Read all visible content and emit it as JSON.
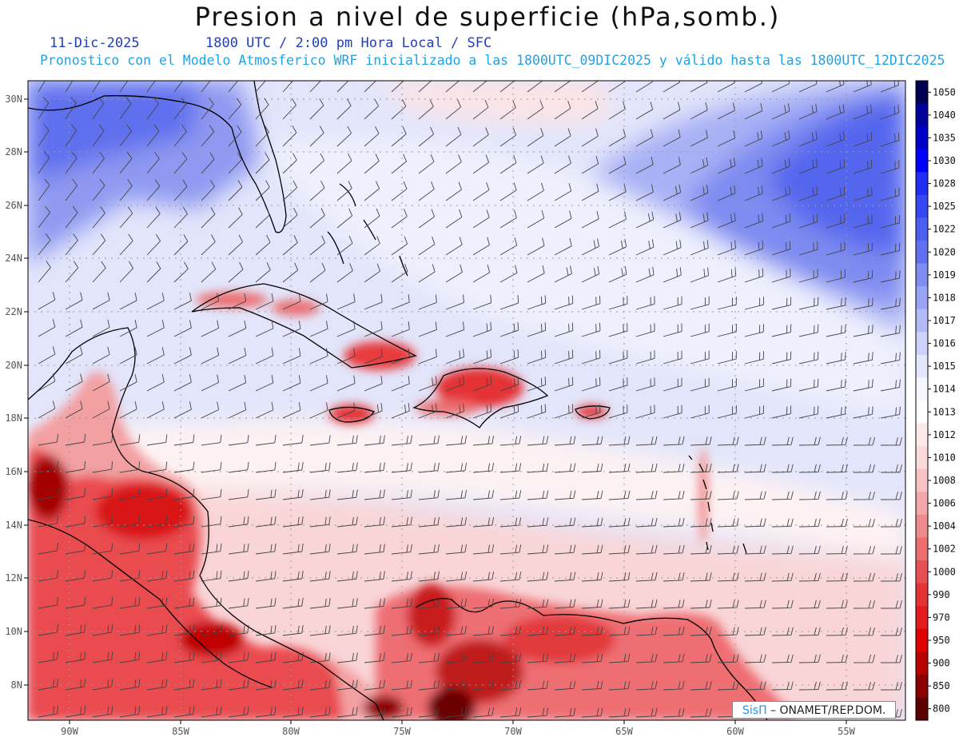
{
  "header": {
    "title": "Presion a nivel de superficie (hPa,somb.)",
    "date": "11-Dic-2025",
    "time_line": "1800 UTC / 2:00 pm Hora Local / SFC",
    "description": "Pronostico con el Modelo Atmosferico WRF inicializado a las 1800UTC_09DIC2025 y válido hasta las  1800UTC_12DIC2025"
  },
  "map": {
    "lon_labels": [
      "90W",
      "85W",
      "80W",
      "75W",
      "70W",
      "65W",
      "60W",
      "55W"
    ],
    "lat_labels": [
      "30N",
      "28N",
      "26N",
      "24N",
      "22N",
      "20N",
      "18N",
      "16N",
      "14N",
      "12N",
      "10N",
      "8N"
    ]
  },
  "colorbar": {
    "levels": [
      "1050",
      "1040",
      "1035",
      "1030",
      "1028",
      "1025",
      "1022",
      "1020",
      "1019",
      "1018",
      "1017",
      "1016",
      "1015",
      "1014",
      "1013",
      "1012",
      "1010",
      "1008",
      "1006",
      "1004",
      "1002",
      "1000",
      "990",
      "970",
      "950",
      "900",
      "850",
      "800"
    ],
    "colors": [
      "#000050",
      "#00009c",
      "#0000c8",
      "#0000ff",
      "#1e2ef5",
      "#3347f2",
      "#4a5ef0",
      "#6070f0",
      "#7f8df2",
      "#99a4f4",
      "#b3bbf7",
      "#cdd2fa",
      "#e3e6fc",
      "#f6f7fe",
      "#ffffff",
      "#fde9ea",
      "#fbd8d9",
      "#f8c3c4",
      "#f4a6a8",
      "#f08b8d",
      "#ec6e70",
      "#e84f52",
      "#e63234",
      "#e51a1c",
      "#e00000",
      "#b80000",
      "#8c0000",
      "#5c0000"
    ]
  },
  "credit": {
    "brand": "SisΠ",
    "text": " – ONAMET/REP.DOM."
  }
}
